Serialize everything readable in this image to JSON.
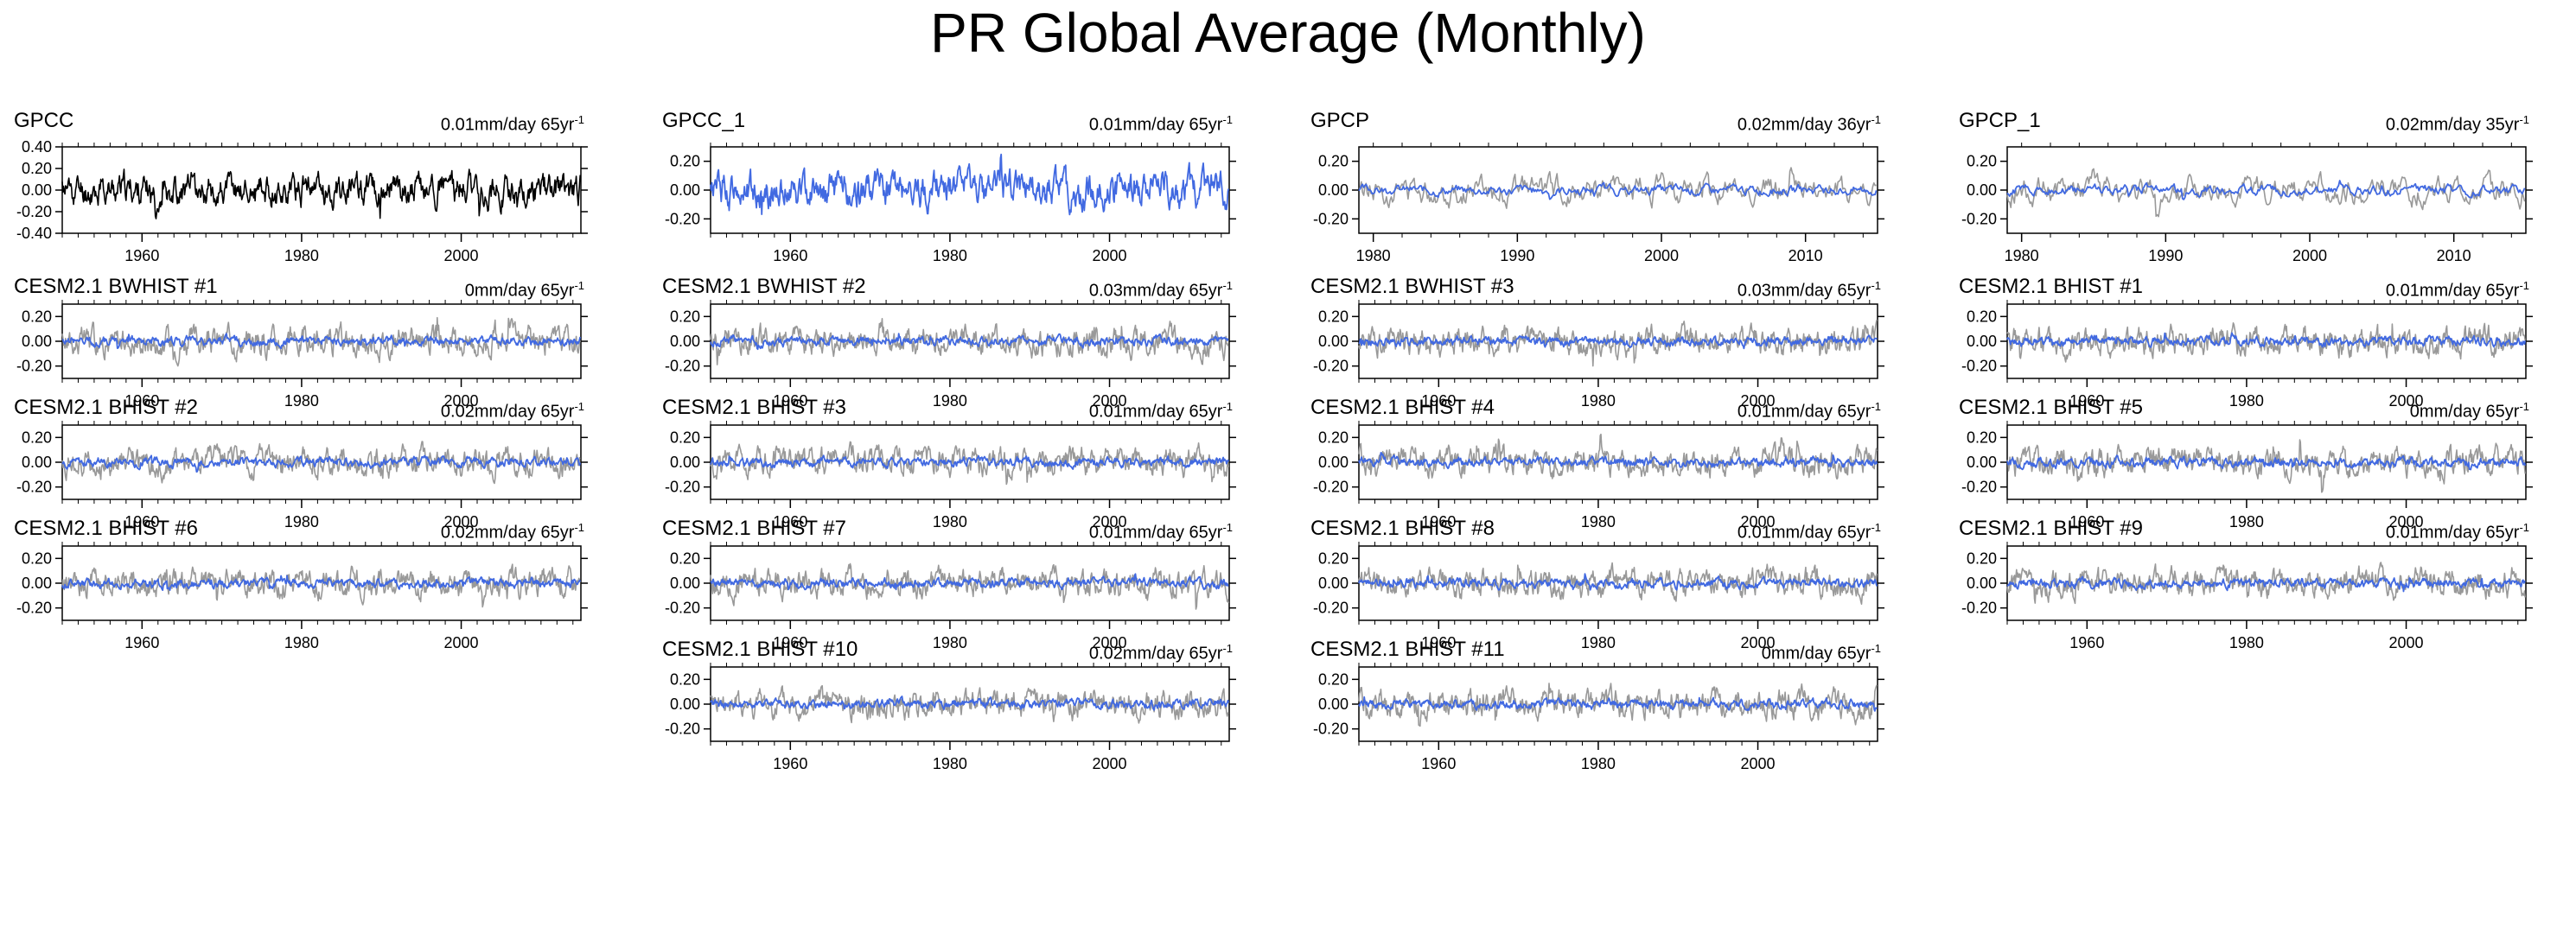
{
  "title": "PR Global Average (Monthly)",
  "colors": {
    "obs": "#000000",
    "model_gray": "#999999",
    "model_blue": "#4169e1"
  },
  "chart_data": [
    {
      "type": "line",
      "title": "GPCC",
      "trend": "0.01mm/day 65yr",
      "trend_exp": "-1",
      "xlim": [
        1950,
        2015
      ],
      "ylim": [
        -0.4,
        0.4
      ],
      "yticks": [
        "-0.40",
        "-0.20",
        "0.00",
        "0.20",
        "0.40"
      ],
      "yvals": [
        -0.4,
        -0.2,
        0,
        0.2,
        0.4
      ],
      "xticks": [
        1960,
        1980,
        2000
      ],
      "series": [
        {
          "color": "obs",
          "amp": 0.12,
          "seed": 11
        }
      ]
    },
    {
      "type": "line",
      "title": "GPCC_1",
      "trend": "0.01mm/day 65yr",
      "trend_exp": "-1",
      "xlim": [
        1950,
        2015
      ],
      "ylim": [
        -0.3,
        0.3
      ],
      "yticks": [
        "-0.20",
        "0.00",
        "0.20"
      ],
      "yvals": [
        -0.2,
        0,
        0.2
      ],
      "xticks": [
        1960,
        1980,
        2000
      ],
      "series": [
        {
          "color": "model_blue",
          "amp": 0.1,
          "seed": 12
        }
      ]
    },
    {
      "type": "line",
      "title": "GPCP",
      "trend": "0.02mm/day 36yr",
      "trend_exp": "-1",
      "xlim": [
        1979,
        2015
      ],
      "ylim": [
        -0.3,
        0.3
      ],
      "yticks": [
        "-0.20",
        "0.00",
        "0.20"
      ],
      "yvals": [
        -0.2,
        0,
        0.2
      ],
      "xticks": [
        1980,
        1990,
        2000,
        2010
      ],
      "series": [
        {
          "color": "model_gray",
          "amp": 0.08,
          "seed": 13
        },
        {
          "color": "model_blue",
          "amp": 0.03,
          "seed": 14
        }
      ]
    },
    {
      "type": "line",
      "title": "GPCP_1",
      "trend": "0.02mm/day 35yr",
      "trend_exp": "-1",
      "xlim": [
        1979,
        2015
      ],
      "ylim": [
        -0.3,
        0.3
      ],
      "yticks": [
        "-0.20",
        "0.00",
        "0.20"
      ],
      "yvals": [
        -0.2,
        0,
        0.2
      ],
      "xticks": [
        1980,
        1990,
        2000,
        2010
      ],
      "series": [
        {
          "color": "model_gray",
          "amp": 0.08,
          "seed": 15
        },
        {
          "color": "model_blue",
          "amp": 0.03,
          "seed": 16
        }
      ]
    },
    {
      "type": "line",
      "title": "CESM2.1 BWHIST #1",
      "trend": "0mm/day 65yr",
      "trend_exp": "-1",
      "xlim": [
        1950,
        2015
      ],
      "ylim": [
        -0.3,
        0.3
      ],
      "yticks": [
        "-0.20",
        "0.00",
        "0.20"
      ],
      "yvals": [
        -0.2,
        0,
        0.2
      ],
      "xticks": [
        1960,
        1980,
        2000
      ],
      "series": [
        {
          "color": "model_gray",
          "amp": 0.09,
          "seed": 17
        },
        {
          "color": "model_blue",
          "amp": 0.03,
          "seed": 18
        }
      ]
    },
    {
      "type": "line",
      "title": "CESM2.1 BWHIST #2",
      "trend": "0.03mm/day 65yr",
      "trend_exp": "-1",
      "xlim": [
        1950,
        2015
      ],
      "ylim": [
        -0.3,
        0.3
      ],
      "yticks": [
        "-0.20",
        "0.00",
        "0.20"
      ],
      "yvals": [
        -0.2,
        0,
        0.2
      ],
      "xticks": [
        1960,
        1980,
        2000
      ],
      "series": [
        {
          "color": "model_gray",
          "amp": 0.09,
          "seed": 19
        },
        {
          "color": "model_blue",
          "amp": 0.03,
          "seed": 20
        }
      ]
    },
    {
      "type": "line",
      "title": "CESM2.1 BWHIST #3",
      "trend": "0.03mm/day 65yr",
      "trend_exp": "-1",
      "xlim": [
        1950,
        2015
      ],
      "ylim": [
        -0.3,
        0.3
      ],
      "yticks": [
        "-0.20",
        "0.00",
        "0.20"
      ],
      "yvals": [
        -0.2,
        0,
        0.2
      ],
      "xticks": [
        1960,
        1980,
        2000
      ],
      "series": [
        {
          "color": "model_gray",
          "amp": 0.09,
          "seed": 21
        },
        {
          "color": "model_blue",
          "amp": 0.03,
          "seed": 22
        }
      ]
    },
    {
      "type": "line",
      "title": "CESM2.1 BHIST #1",
      "trend": "0.01mm/day 65yr",
      "trend_exp": "-1",
      "xlim": [
        1950,
        2015
      ],
      "ylim": [
        -0.3,
        0.3
      ],
      "yticks": [
        "-0.20",
        "0.00",
        "0.20"
      ],
      "yvals": [
        -0.2,
        0,
        0.2
      ],
      "xticks": [
        1960,
        1980,
        2000
      ],
      "series": [
        {
          "color": "model_gray",
          "amp": 0.09,
          "seed": 23
        },
        {
          "color": "model_blue",
          "amp": 0.03,
          "seed": 24
        }
      ]
    },
    {
      "type": "line",
      "title": "CESM2.1 BHIST #2",
      "trend": "0.02mm/day 65yr",
      "trend_exp": "-1",
      "xlim": [
        1950,
        2015
      ],
      "ylim": [
        -0.3,
        0.3
      ],
      "yticks": [
        "-0.20",
        "0.00",
        "0.20"
      ],
      "yvals": [
        -0.2,
        0,
        0.2
      ],
      "xticks": [
        1960,
        1980,
        2000
      ],
      "series": [
        {
          "color": "model_gray",
          "amp": 0.09,
          "seed": 25
        },
        {
          "color": "model_blue",
          "amp": 0.03,
          "seed": 26
        }
      ]
    },
    {
      "type": "line",
      "title": "CESM2.1 BHIST #3",
      "trend": "0.01mm/day 65yr",
      "trend_exp": "-1",
      "xlim": [
        1950,
        2015
      ],
      "ylim": [
        -0.3,
        0.3
      ],
      "yticks": [
        "-0.20",
        "0.00",
        "0.20"
      ],
      "yvals": [
        -0.2,
        0,
        0.2
      ],
      "xticks": [
        1960,
        1980,
        2000
      ],
      "series": [
        {
          "color": "model_gray",
          "amp": 0.09,
          "seed": 27
        },
        {
          "color": "model_blue",
          "amp": 0.03,
          "seed": 28
        }
      ]
    },
    {
      "type": "line",
      "title": "CESM2.1 BHIST #4",
      "trend": "0.01mm/day 65yr",
      "trend_exp": "-1",
      "xlim": [
        1950,
        2015
      ],
      "ylim": [
        -0.3,
        0.3
      ],
      "yticks": [
        "-0.20",
        "0.00",
        "0.20"
      ],
      "yvals": [
        -0.2,
        0,
        0.2
      ],
      "xticks": [
        1960,
        1980,
        2000
      ],
      "series": [
        {
          "color": "model_gray",
          "amp": 0.09,
          "seed": 29
        },
        {
          "color": "model_blue",
          "amp": 0.03,
          "seed": 30
        }
      ]
    },
    {
      "type": "line",
      "title": "CESM2.1 BHIST #5",
      "trend": "0mm/day 65yr",
      "trend_exp": "-1",
      "xlim": [
        1950,
        2015
      ],
      "ylim": [
        -0.3,
        0.3
      ],
      "yticks": [
        "-0.20",
        "0.00",
        "0.20"
      ],
      "yvals": [
        -0.2,
        0,
        0.2
      ],
      "xticks": [
        1960,
        1980,
        2000
      ],
      "series": [
        {
          "color": "model_gray",
          "amp": 0.09,
          "seed": 31
        },
        {
          "color": "model_blue",
          "amp": 0.03,
          "seed": 32
        }
      ]
    },
    {
      "type": "line",
      "title": "CESM2.1 BHIST #6",
      "trend": "0.02mm/day 65yr",
      "trend_exp": "-1",
      "xlim": [
        1950,
        2015
      ],
      "ylim": [
        -0.3,
        0.3
      ],
      "yticks": [
        "-0.20",
        "0.00",
        "0.20"
      ],
      "yvals": [
        -0.2,
        0,
        0.2
      ],
      "xticks": [
        1960,
        1980,
        2000
      ],
      "series": [
        {
          "color": "model_gray",
          "amp": 0.09,
          "seed": 33
        },
        {
          "color": "model_blue",
          "amp": 0.03,
          "seed": 34
        }
      ]
    },
    {
      "type": "line",
      "title": "CESM2.1 BHIST #7",
      "trend": "0.01mm/day 65yr",
      "trend_exp": "-1",
      "xlim": [
        1950,
        2015
      ],
      "ylim": [
        -0.3,
        0.3
      ],
      "yticks": [
        "-0.20",
        "0.00",
        "0.20"
      ],
      "yvals": [
        -0.2,
        0,
        0.2
      ],
      "xticks": [
        1960,
        1980,
        2000
      ],
      "series": [
        {
          "color": "model_gray",
          "amp": 0.09,
          "seed": 35
        },
        {
          "color": "model_blue",
          "amp": 0.03,
          "seed": 36
        }
      ]
    },
    {
      "type": "line",
      "title": "CESM2.1 BHIST #8",
      "trend": "0.01mm/day 65yr",
      "trend_exp": "-1",
      "xlim": [
        1950,
        2015
      ],
      "ylim": [
        -0.3,
        0.3
      ],
      "yticks": [
        "-0.20",
        "0.00",
        "0.20"
      ],
      "yvals": [
        -0.2,
        0,
        0.2
      ],
      "xticks": [
        1960,
        1980,
        2000
      ],
      "series": [
        {
          "color": "model_gray",
          "amp": 0.09,
          "seed": 37
        },
        {
          "color": "model_blue",
          "amp": 0.03,
          "seed": 38
        }
      ]
    },
    {
      "type": "line",
      "title": "CESM2.1 BHIST #9",
      "trend": "0.01mm/day 65yr",
      "trend_exp": "-1",
      "xlim": [
        1950,
        2015
      ],
      "ylim": [
        -0.3,
        0.3
      ],
      "yticks": [
        "-0.20",
        "0.00",
        "0.20"
      ],
      "yvals": [
        -0.2,
        0,
        0.2
      ],
      "xticks": [
        1960,
        1980,
        2000
      ],
      "series": [
        {
          "color": "model_gray",
          "amp": 0.09,
          "seed": 39
        },
        {
          "color": "model_blue",
          "amp": 0.03,
          "seed": 40
        }
      ]
    },
    {
      "type": "line",
      "title": "CESM2.1 BHIST #10",
      "trend": "0.02mm/day 65yr",
      "trend_exp": "-1",
      "xlim": [
        1950,
        2015
      ],
      "ylim": [
        -0.3,
        0.3
      ],
      "yticks": [
        "-0.20",
        "0.00",
        "0.20"
      ],
      "yvals": [
        -0.2,
        0,
        0.2
      ],
      "xticks": [
        1960,
        1980,
        2000
      ],
      "series": [
        {
          "color": "model_gray",
          "amp": 0.09,
          "seed": 41
        },
        {
          "color": "model_blue",
          "amp": 0.03,
          "seed": 42
        }
      ]
    },
    {
      "type": "line",
      "title": "CESM2.1 BHIST #11",
      "trend": "0mm/day 65yr",
      "trend_exp": "-1",
      "xlim": [
        1950,
        2015
      ],
      "ylim": [
        -0.3,
        0.3
      ],
      "yticks": [
        "-0.20",
        "0.00",
        "0.20"
      ],
      "yvals": [
        -0.2,
        0,
        0.2
      ],
      "xticks": [
        1960,
        1980,
        2000
      ],
      "series": [
        {
          "color": "model_gray",
          "amp": 0.09,
          "seed": 43
        },
        {
          "color": "model_blue",
          "amp": 0.03,
          "seed": 44
        }
      ]
    }
  ]
}
